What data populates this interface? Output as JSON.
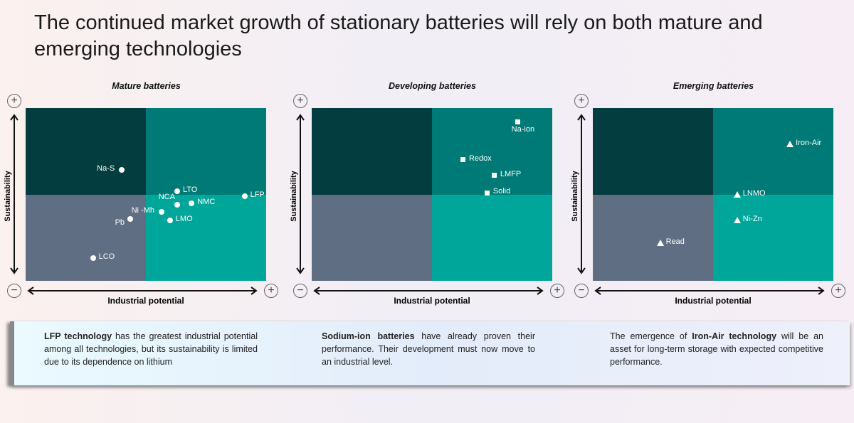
{
  "title": "The continued market growth of stationary batteries will rely on both mature and emerging technologies",
  "colors": {
    "low_low": "#5f6e82",
    "high_sus_low_ind": "#033d40",
    "high_high": "#007a76",
    "low_sus_high_ind": "#00a69a",
    "marker": "#ffffff"
  },
  "axis_symbols": {
    "plus": "+",
    "minus": "−"
  },
  "chart_data": [
    {
      "type": "scatter",
      "title": "Mature batteries",
      "xlabel": "Industrial potential",
      "ylabel": "Sustainability",
      "xlim": [
        0,
        100
      ],
      "ylim": [
        0,
        100
      ],
      "marker": "circle",
      "grid": false,
      "points": [
        {
          "label": "Na-S",
          "x": 40,
          "y": 64,
          "pos": "left"
        },
        {
          "label": "LTO",
          "x": 63,
          "y": 52,
          "pos": "right"
        },
        {
          "label": "LFP",
          "x": 91,
          "y": 49,
          "pos": "right"
        },
        {
          "label": "NCA",
          "x": 63,
          "y": 44,
          "pos": "upleft"
        },
        {
          "label": "NMC",
          "x": 69,
          "y": 45,
          "pos": "right"
        },
        {
          "label": "Ni -Mh",
          "x": 56.5,
          "y": 40,
          "pos": "left"
        },
        {
          "label": "Pb",
          "x": 43.5,
          "y": 36,
          "pos": "downleft"
        },
        {
          "label": "LMO",
          "x": 60,
          "y": 35,
          "pos": "right"
        },
        {
          "label": "LCO",
          "x": 28,
          "y": 13,
          "pos": "right"
        }
      ]
    },
    {
      "type": "scatter",
      "title": "Developing batteries",
      "xlabel": "Industrial potential",
      "ylabel": "Sustainability",
      "xlim": [
        0,
        100
      ],
      "ylim": [
        0,
        100
      ],
      "marker": "square",
      "grid": false,
      "points": [
        {
          "label": "Na-ion",
          "x": 85.7,
          "y": 92,
          "pos": "below"
        },
        {
          "label": "Redox",
          "x": 63,
          "y": 70,
          "pos": "right"
        },
        {
          "label": "LMFP",
          "x": 76,
          "y": 61,
          "pos": "right"
        },
        {
          "label": "Solid",
          "x": 73,
          "y": 51,
          "pos": "right"
        }
      ]
    },
    {
      "type": "scatter",
      "title": "Emerging batteries",
      "xlabel": "Industrial potential",
      "ylabel": "Sustainability",
      "xlim": [
        0,
        100
      ],
      "ylim": [
        0,
        100
      ],
      "marker": "triangle",
      "grid": false,
      "points": [
        {
          "label": "Iron-Air",
          "x": 82,
          "y": 79,
          "pos": "right"
        },
        {
          "label": "LNMO",
          "x": 60,
          "y": 50,
          "pos": "right"
        },
        {
          "label": "Ni-Zn",
          "x": 60,
          "y": 35,
          "pos": "right"
        },
        {
          "label": "Read",
          "x": 28,
          "y": 22,
          "pos": "right"
        }
      ]
    }
  ],
  "notes": [
    {
      "bold": "LFP technology",
      "text": " has the greatest industrial potential among all technologies, but its sustainability is limited due to its dependence on lithium"
    },
    {
      "bold": "Sodium-ion batteries",
      "text": " have already proven their performance. Their development must now move to an industrial level."
    },
    {
      "prefix": "The emergence of ",
      "bold": "Iron-Air technology",
      "text": " will be an asset for long-term storage with expected competitive performance."
    }
  ]
}
